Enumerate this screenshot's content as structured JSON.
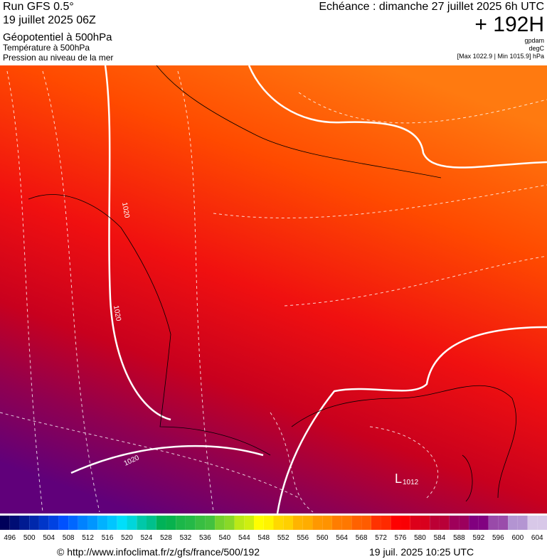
{
  "header": {
    "run": "Run GFS 0.5°",
    "date": "19 juillet 2025 06Z",
    "field1": "Géopotentiel à 500hPa",
    "field2": "Température à 500hPa",
    "field3": "Pression au niveau de la mer",
    "forecast": "Echéance : dimanche 27 juillet 2025 6h UTC",
    "lead": "+ 192H",
    "unit1": "gpdam",
    "unit2": "degC",
    "range": "[Max 1022.9 | Min 1015.9] hPa"
  },
  "map": {
    "isobar_labels": [
      "1020",
      "1020",
      "1020",
      "1012"
    ],
    "low": "L"
  },
  "colorbar": {
    "labels": [
      496,
      500,
      504,
      508,
      512,
      516,
      520,
      524,
      528,
      532,
      536,
      540,
      544,
      548,
      552,
      556,
      560,
      564,
      568,
      572,
      576,
      580,
      584,
      588,
      592,
      596,
      600,
      604
    ]
  },
  "footer": {
    "url": "© http://www.infoclimat.fr/z/gfs/france/500/192",
    "timestamp": "19 juil. 2025 10:25 UTC"
  }
}
